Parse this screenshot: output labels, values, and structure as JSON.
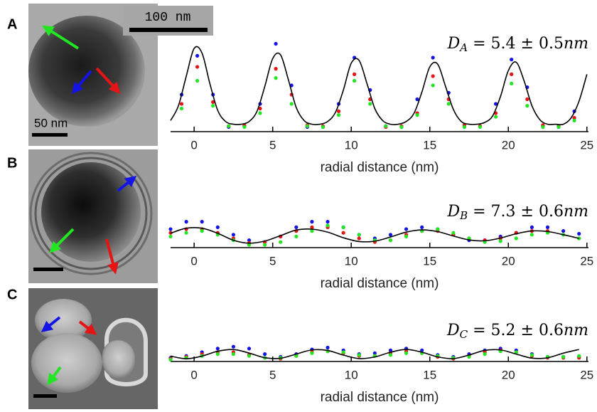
{
  "panels": [
    "A",
    "B",
    "C"
  ],
  "scale_labels": [
    "100 nm",
    "50 nm"
  ],
  "chart_data": [
    {
      "type": "scatter",
      "equation": {
        "symbol": "D",
        "subscript": "A",
        "value": " = 5.4 ± 0.5",
        "unit": "nm"
      },
      "xlabel": "radial distance (nm)",
      "xlim": [
        -1.5,
        25.1
      ],
      "ylim": [
        0,
        1
      ],
      "xticks": [
        0,
        5,
        10,
        15,
        20,
        25
      ],
      "x": [
        -0.8,
        0.2,
        1.2,
        2.2,
        3.2,
        4.2,
        5.2,
        6.2,
        7.2,
        8.2,
        9.2,
        10.2,
        11.2,
        12.2,
        13.2,
        14.2,
        15.2,
        16.2,
        17.2,
        18.2,
        19.2,
        20.2,
        21.2,
        22.2,
        23.2,
        24.2
      ],
      "series": [
        {
          "color": "#1414e6",
          "values": [
            0.4,
            0.82,
            0.4,
            0.05,
            0.06,
            0.3,
            0.95,
            0.5,
            0.05,
            0.05,
            0.3,
            0.8,
            0.45,
            0.06,
            0.05,
            0.35,
            0.8,
            0.42,
            0.05,
            0.06,
            0.3,
            0.78,
            0.48,
            0.06,
            0.05,
            0.22
          ]
        },
        {
          "color": "#e61414",
          "values": [
            0.3,
            0.7,
            0.32,
            0.06,
            0.07,
            0.25,
            0.68,
            0.4,
            0.07,
            0.06,
            0.22,
            0.62,
            0.35,
            0.05,
            0.06,
            0.2,
            0.6,
            0.35,
            0.07,
            0.06,
            0.2,
            0.62,
            0.35,
            0.07,
            0.06,
            0.15
          ]
        },
        {
          "color": "#22e622",
          "values": [
            0.25,
            0.55,
            0.28,
            0.06,
            0.05,
            0.2,
            0.58,
            0.3,
            0.06,
            0.05,
            0.18,
            0.55,
            0.3,
            0.06,
            0.05,
            0.18,
            0.5,
            0.3,
            0.05,
            0.05,
            0.16,
            0.52,
            0.28,
            0.05,
            0.05,
            0.12
          ]
        }
      ],
      "fit": {
        "color": "#000000",
        "x": [
          -1.5,
          -1,
          -0.5,
          0,
          0.5,
          1,
          1.5,
          2,
          2.5,
          3,
          3.5,
          4,
          4.5,
          5,
          5.5,
          6,
          6.5,
          7,
          7.5,
          8,
          8.5,
          9,
          9.5,
          10,
          10.5,
          11,
          11.5,
          12,
          12.5,
          13,
          13.5,
          14,
          14.5,
          15,
          15.5,
          16,
          16.5,
          17,
          17.5,
          18,
          18.5,
          19,
          19.5,
          20,
          20.5,
          21,
          21.5,
          22,
          22.5,
          23,
          23.5,
          24,
          24.5,
          25
        ],
        "values": [
          0.12,
          0.28,
          0.6,
          0.9,
          0.85,
          0.52,
          0.23,
          0.11,
          0.08,
          0.08,
          0.11,
          0.22,
          0.49,
          0.79,
          0.83,
          0.56,
          0.26,
          0.12,
          0.08,
          0.08,
          0.11,
          0.21,
          0.45,
          0.74,
          0.77,
          0.52,
          0.25,
          0.12,
          0.08,
          0.08,
          0.11,
          0.2,
          0.43,
          0.7,
          0.73,
          0.49,
          0.24,
          0.11,
          0.08,
          0.08,
          0.1,
          0.17,
          0.38,
          0.66,
          0.75,
          0.55,
          0.28,
          0.13,
          0.08,
          0.08,
          0.08,
          0.15,
          0.33,
          0.62
        ]
      }
    },
    {
      "type": "scatter",
      "equation": {
        "symbol": "D",
        "subscript": "B",
        "value": " = 7.3 ± 0.6",
        "unit": "nm"
      },
      "xlabel": "radial distance (nm)",
      "xlim": [
        -1.5,
        25.1
      ],
      "ylim": [
        0,
        1
      ],
      "xticks": [
        0,
        5,
        10,
        15,
        20,
        25
      ],
      "x": [
        -1.5,
        -0.5,
        0.5,
        1.5,
        2.5,
        3.5,
        4.5,
        5.5,
        6.5,
        7.5,
        8.5,
        9.5,
        10.5,
        11.5,
        12.5,
        13.5,
        14.5,
        15.5,
        16.5,
        17.5,
        18.5,
        19.5,
        20.5,
        21.5,
        22.5,
        23.5,
        24.5
      ],
      "series": [
        {
          "color": "#1414e6",
          "values": [
            0.2,
            0.28,
            0.28,
            0.22,
            0.14,
            0.08,
            0.06,
            0.12,
            0.22,
            0.28,
            0.28,
            0.22,
            0.14,
            0.1,
            0.14,
            0.2,
            0.22,
            0.2,
            0.14,
            0.08,
            0.08,
            0.12,
            0.16,
            0.22,
            0.22,
            0.18,
            0.15
          ]
        },
        {
          "color": "#e61414",
          "values": [
            0.16,
            0.2,
            0.2,
            0.16,
            0.1,
            0.05,
            0.06,
            0.12,
            0.18,
            0.22,
            0.22,
            0.16,
            0.1,
            0.06,
            0.08,
            0.14,
            0.18,
            0.18,
            0.14,
            0.1,
            0.08,
            0.1,
            0.16,
            0.18,
            0.18,
            0.14,
            0.1
          ]
        },
        {
          "color": "#22e622",
          "values": [
            0.12,
            0.16,
            0.18,
            0.14,
            0.08,
            0.03,
            0.03,
            0.06,
            0.12,
            0.18,
            0.24,
            0.22,
            0.14,
            0.08,
            0.08,
            0.12,
            0.18,
            0.2,
            0.16,
            0.1,
            0.06,
            0.07,
            0.1,
            0.14,
            0.16,
            0.14,
            0.1
          ]
        }
      ],
      "fit": {
        "color": "#000000",
        "x": [
          -1.5,
          -0.5,
          0.5,
          1.5,
          2.5,
          3.5,
          4.5,
          5.5,
          6.5,
          7.5,
          8.5,
          9.5,
          10.5,
          11.5,
          12.5,
          13.5,
          14.5,
          15.5,
          16.5,
          17.5,
          18.5,
          19.5,
          20.5,
          21.5,
          22.5,
          23.5,
          24.5
        ],
        "values": [
          0.155,
          0.21,
          0.21,
          0.155,
          0.08,
          0.048,
          0.071,
          0.13,
          0.19,
          0.2,
          0.167,
          0.107,
          0.066,
          0.07,
          0.115,
          0.168,
          0.192,
          0.173,
          0.126,
          0.083,
          0.074,
          0.104,
          0.15,
          0.18,
          0.174,
          0.14,
          0.1
        ]
      }
    },
    {
      "type": "scatter",
      "equation": {
        "symbol": "D",
        "subscript": "C",
        "value": " = 5.2 ± 0.6",
        "unit": "nm"
      },
      "xlabel": "radial distance (nm)",
      "xlim": [
        -1.5,
        25.1
      ],
      "ylim": [
        0,
        1
      ],
      "xticks": [
        0,
        5,
        10,
        15,
        20,
        25
      ],
      "x": [
        -1.5,
        -0.5,
        0.5,
        1.5,
        2.5,
        3.5,
        4.5,
        5.5,
        6.5,
        7.5,
        8.5,
        9.5,
        10.5,
        11.5,
        12.5,
        13.5,
        14.5,
        15.5,
        16.5,
        17.5,
        18.5,
        19.5,
        20.5,
        21.5,
        22.5,
        23.5,
        24.5
      ],
      "series": [
        {
          "color": "#1414e6",
          "values": [
            0.04,
            0.06,
            0.1,
            0.14,
            0.16,
            0.14,
            0.08,
            0.05,
            0.08,
            0.13,
            0.15,
            0.12,
            0.08,
            0.09,
            0.12,
            0.14,
            0.12,
            0.07,
            0.05,
            0.08,
            0.12,
            0.14,
            0.12,
            0.08,
            0.05,
            0.05,
            0.05
          ]
        },
        {
          "color": "#e61414",
          "values": [
            0.03,
            0.05,
            0.08,
            0.1,
            0.1,
            0.07,
            0.04,
            0.03,
            0.06,
            0.1,
            0.11,
            0.09,
            0.06,
            0.06,
            0.09,
            0.11,
            0.09,
            0.05,
            0.03,
            0.06,
            0.1,
            0.12,
            0.1,
            0.06,
            0.04,
            0.04,
            0.04
          ]
        },
        {
          "color": "#22e622",
          "values": [
            0.02,
            0.04,
            0.06,
            0.08,
            0.08,
            0.06,
            0.04,
            0.04,
            0.06,
            0.09,
            0.11,
            0.1,
            0.07,
            0.06,
            0.07,
            0.09,
            0.09,
            0.06,
            0.04,
            0.05,
            0.08,
            0.11,
            0.1,
            0.07,
            0.05,
            0.05,
            0.06
          ]
        }
      ],
      "fit": {
        "color": "#000000",
        "x": [
          -1.5,
          -0.5,
          0.5,
          1.5,
          2.5,
          3.5,
          4.5,
          5.5,
          6.5,
          7.5,
          8.5,
          9.5,
          10.5,
          11.5,
          12.5,
          13.5,
          14.5,
          15.5,
          16.5,
          17.5,
          18.5,
          19.5,
          20.5,
          21.5,
          22.5,
          23.5,
          24.5
        ],
        "values": [
          0.058,
          0.03,
          0.058,
          0.111,
          0.129,
          0.091,
          0.041,
          0.035,
          0.08,
          0.125,
          0.119,
          0.069,
          0.031,
          0.049,
          0.1,
          0.13,
          0.1,
          0.05,
          0.031,
          0.07,
          0.12,
          0.125,
          0.08,
          0.036,
          0.04,
          0.09,
          0.13
        ]
      }
    }
  ]
}
